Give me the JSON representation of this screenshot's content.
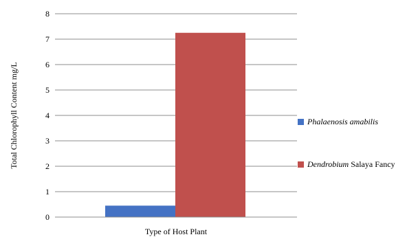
{
  "chart_data": {
    "type": "bar",
    "categories": [
      ""
    ],
    "series": [
      {
        "name_italic": "Phalaenosis amabilis",
        "name_rest": "",
        "values": [
          0.45
        ],
        "color": "#4472C4"
      },
      {
        "name_italic": "Dendrobium",
        "name_rest": " Salaya Fancy",
        "values": [
          7.25
        ],
        "color": "#C0504D"
      }
    ],
    "xlabel": "Type of Host Plant",
    "ylabel": "Total Chlorophyll Content mg/L",
    "ylim": [
      0,
      8
    ],
    "yticks": [
      0,
      1,
      2,
      3,
      4,
      5,
      6,
      7,
      8
    ],
    "grid": true,
    "legend_position": "right"
  }
}
